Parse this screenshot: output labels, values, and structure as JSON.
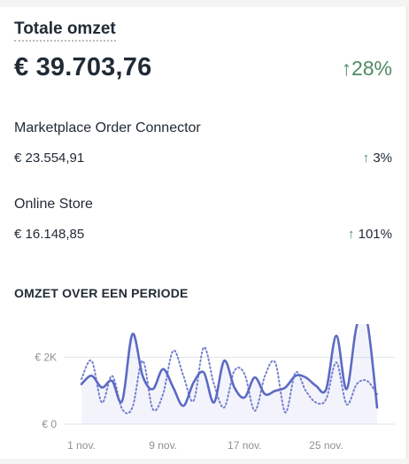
{
  "card": {
    "title": "Totale omzet",
    "total_value": "€ 39.703,76",
    "total_change": "28%",
    "total_change_arrow": "↑",
    "accent_color": "#4f8a63"
  },
  "channels": [
    {
      "name": "Marketplace Order Connector",
      "value": "€ 23.554,91",
      "arrow": "↑",
      "change": "3%"
    },
    {
      "name": "Online Store",
      "value": "€ 16.148,85",
      "arrow": "↑",
      "change": "101%"
    }
  ],
  "chart_section": {
    "title": "OMZET OVER EEN PERIODE"
  },
  "chart_data": {
    "type": "line",
    "y_ticks": [
      "€ 2K",
      "€ 0"
    ],
    "x_ticks": [
      "1 nov.",
      "9 nov.",
      "17 nov.",
      "25 nov."
    ],
    "ylim": [
      0,
      3000
    ],
    "x": [
      "1 nov.",
      "2 nov.",
      "3 nov.",
      "4 nov.",
      "5 nov.",
      "6 nov.",
      "7 nov.",
      "8 nov.",
      "9 nov.",
      "10 nov.",
      "11 nov.",
      "12 nov.",
      "13 nov.",
      "14 nov.",
      "15 nov.",
      "16 nov.",
      "17 nov.",
      "18 nov.",
      "19 nov.",
      "20 nov.",
      "21 nov.",
      "22 nov.",
      "23 nov.",
      "24 nov.",
      "25 nov.",
      "26 nov.",
      "27 nov.",
      "28 nov.",
      "29 nov.",
      "30 nov."
    ],
    "series": [
      {
        "style": "solid",
        "color": "#5c6ac4",
        "values": [
          1200,
          1450,
          1100,
          1300,
          700,
          2700,
          1450,
          1050,
          1650,
          1100,
          550,
          1250,
          1550,
          650,
          1900,
          1100,
          800,
          1400,
          900,
          1000,
          1100,
          1450,
          1400,
          1150,
          1050,
          2650,
          1050,
          2950,
          3100,
          500
        ]
      },
      {
        "style": "dotted",
        "color": "#5c6ac4",
        "values": [
          1350,
          1900,
          650,
          1450,
          450,
          500,
          1900,
          450,
          900,
          2200,
          1450,
          700,
          2300,
          1200,
          500,
          1600,
          1500,
          400,
          1450,
          1850,
          350,
          1550,
          1000,
          650,
          750,
          1850,
          600,
          1200,
          1300,
          900
        ]
      }
    ]
  }
}
